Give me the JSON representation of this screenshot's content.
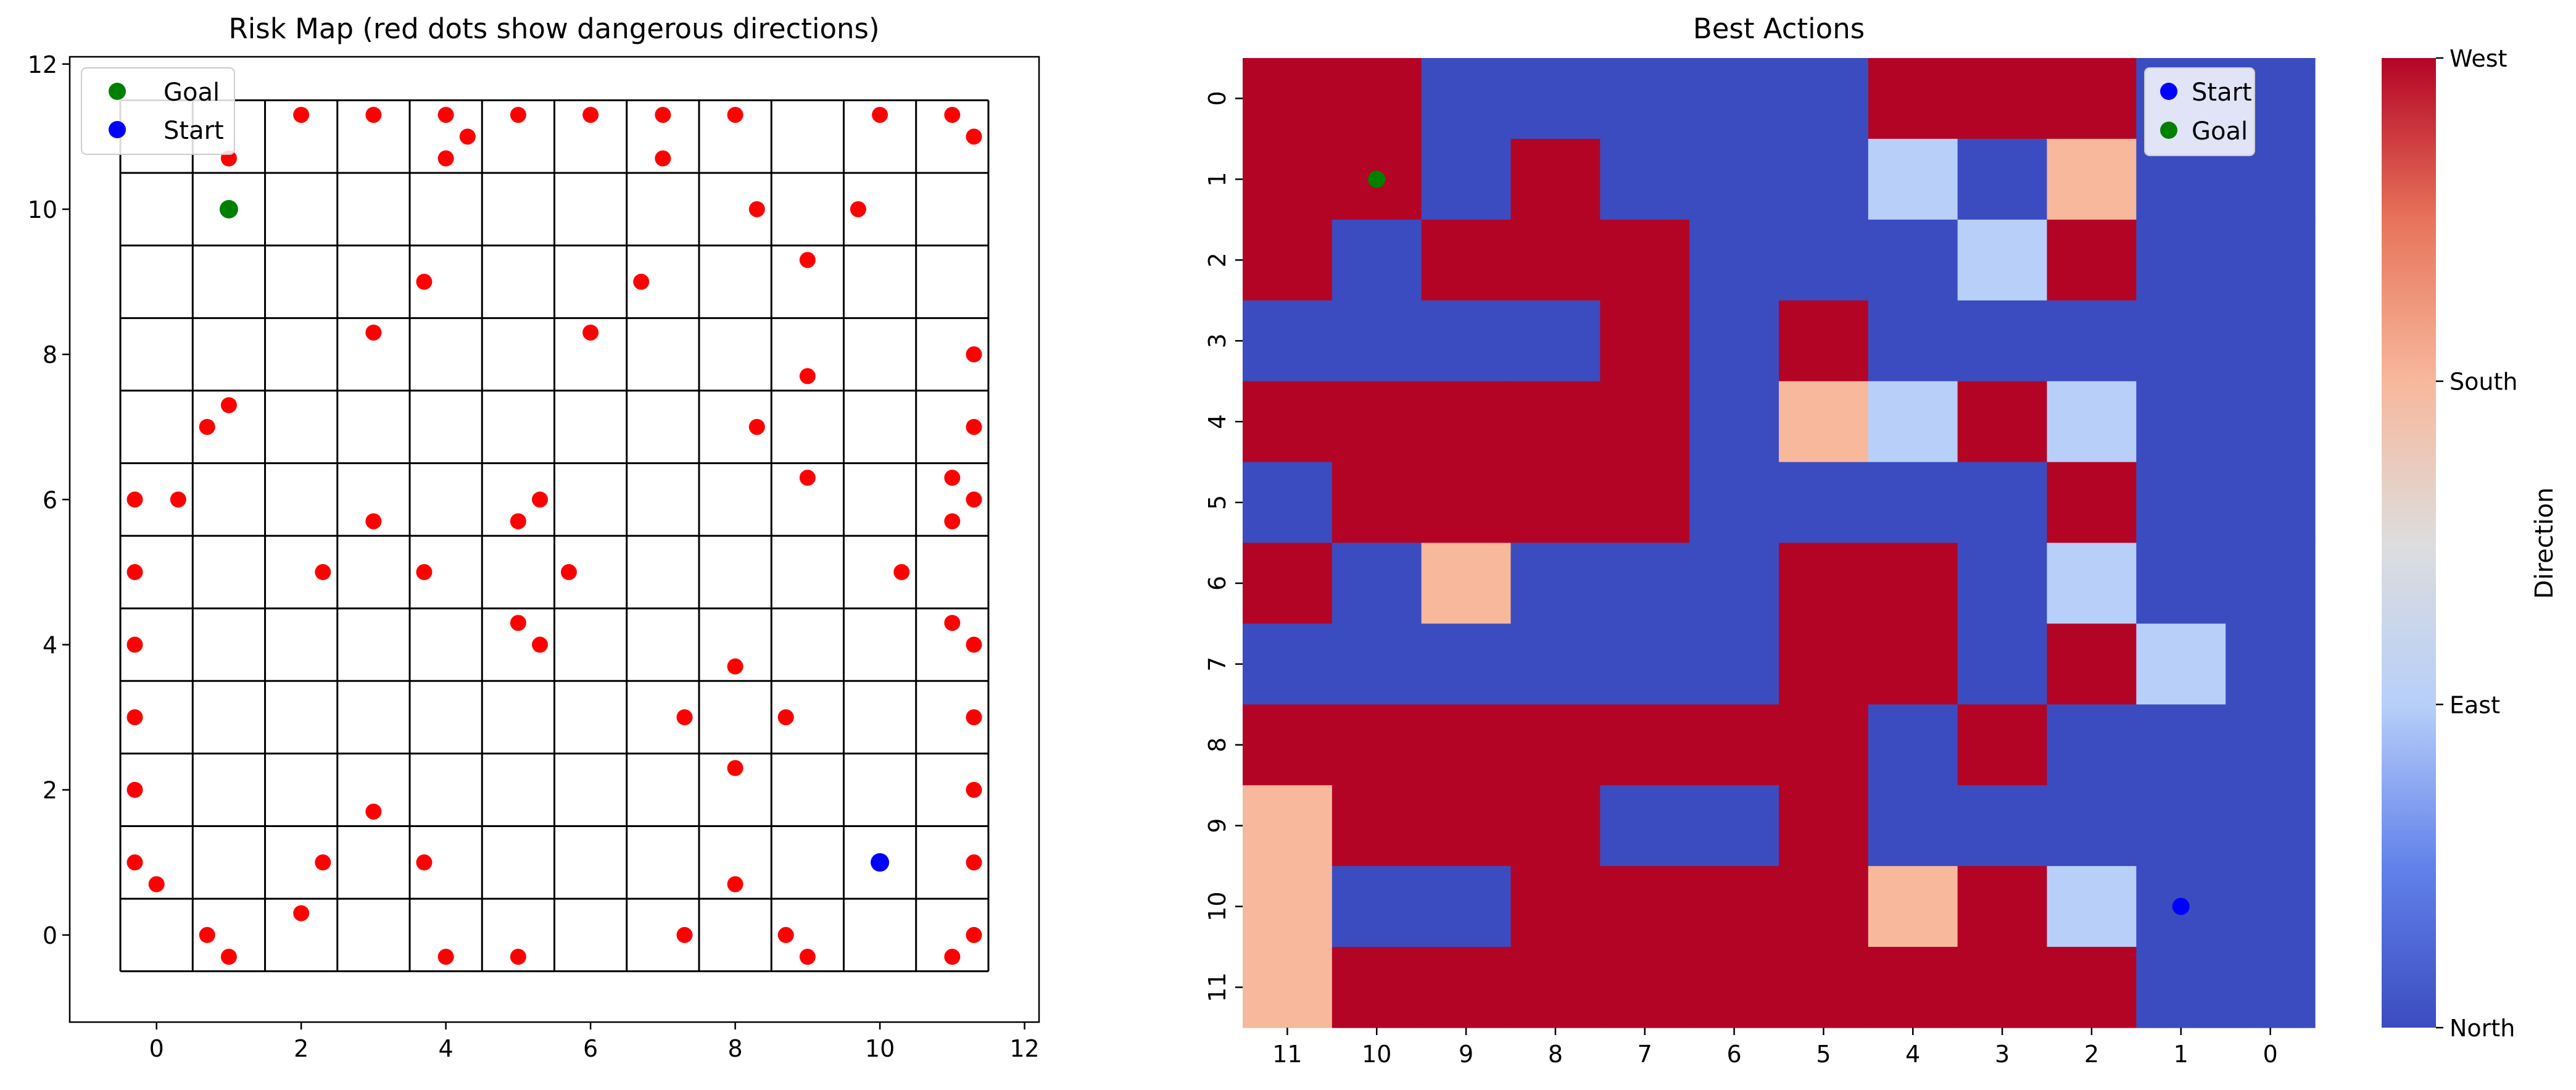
{
  "colors": {
    "danger": "#ff0000",
    "goal": "#008000",
    "start": "#0000ff",
    "north": "#3b4cc0",
    "east": "#b7cff9",
    "south": "#f7b89c",
    "west": "#b40426",
    "grid_line": "#000000"
  },
  "chart_data": [
    {
      "type": "scatter",
      "title": "Risk Map (red dots show dangerous directions)",
      "xlim": [
        -1.2,
        12.2
      ],
      "ylim": [
        -1.2,
        12.1
      ],
      "xticks": [
        "0",
        "2",
        "4",
        "6",
        "8",
        "10",
        "12"
      ],
      "yticks": [
        "0",
        "2",
        "4",
        "6",
        "8",
        "10",
        "12"
      ],
      "grid_size": 12,
      "grid": true,
      "legend_position": "top-left",
      "legend": [
        {
          "label": "Goal",
          "color": "#008000"
        },
        {
          "label": "Start",
          "color": "#0000ff"
        }
      ],
      "goal": [
        1,
        10
      ],
      "start": [
        10,
        1
      ],
      "danger_points": [
        [
          1,
          10.7
        ],
        [
          2,
          11.3
        ],
        [
          3,
          11.3
        ],
        [
          4,
          11.3
        ],
        [
          4.3,
          11
        ],
        [
          4,
          10.7
        ],
        [
          5,
          11.3
        ],
        [
          6,
          11.3
        ],
        [
          7,
          11.3
        ],
        [
          7,
          10.7
        ],
        [
          8,
          11.3
        ],
        [
          10,
          11.3
        ],
        [
          11,
          11.3
        ],
        [
          11.3,
          11
        ],
        [
          8.3,
          10
        ],
        [
          9.7,
          10
        ],
        [
          3.7,
          9
        ],
        [
          6.7,
          9
        ],
        [
          9,
          9.3
        ],
        [
          3,
          8.3
        ],
        [
          6,
          8.3
        ],
        [
          11.3,
          8
        ],
        [
          9,
          7.7
        ],
        [
          1,
          7.3
        ],
        [
          0.7,
          7
        ],
        [
          8.3,
          7
        ],
        [
          11.3,
          7
        ],
        [
          -0.3,
          6
        ],
        [
          0.3,
          6
        ],
        [
          3,
          5.7
        ],
        [
          5.3,
          6
        ],
        [
          5,
          5.7
        ],
        [
          9,
          6.3
        ],
        [
          11,
          6.3
        ],
        [
          11.3,
          6
        ],
        [
          11,
          5.7
        ],
        [
          -0.3,
          5
        ],
        [
          2.3,
          5
        ],
        [
          3.7,
          5
        ],
        [
          5.7,
          5
        ],
        [
          10.3,
          5
        ],
        [
          -0.3,
          4
        ],
        [
          5,
          4.3
        ],
        [
          5.3,
          4
        ],
        [
          8,
          3.7
        ],
        [
          11,
          4.3
        ],
        [
          11.3,
          4
        ],
        [
          -0.3,
          3
        ],
        [
          7.3,
          3
        ],
        [
          8.7,
          3
        ],
        [
          11.3,
          3
        ],
        [
          -0.3,
          2
        ],
        [
          8,
          2.3
        ],
        [
          11.3,
          2
        ],
        [
          3,
          1.7
        ],
        [
          -0.3,
          1
        ],
        [
          0,
          0.7
        ],
        [
          2.3,
          1
        ],
        [
          3.7,
          1
        ],
        [
          8,
          0.7
        ],
        [
          11.3,
          1
        ],
        [
          0.7,
          0
        ],
        [
          1,
          -0.3
        ],
        [
          2,
          0.3
        ],
        [
          4,
          -0.3
        ],
        [
          5,
          -0.3
        ],
        [
          7.3,
          0
        ],
        [
          8.7,
          0
        ],
        [
          9,
          -0.3
        ],
        [
          11,
          -0.3
        ],
        [
          11.3,
          0
        ]
      ]
    },
    {
      "type": "heatmap",
      "title": "Best Actions",
      "x_tick_labels": [
        "11",
        "10",
        "9",
        "8",
        "7",
        "6",
        "5",
        "4",
        "3",
        "2",
        "1",
        "0"
      ],
      "y_tick_labels": [
        "0",
        "1",
        "2",
        "3",
        "4",
        "5",
        "6",
        "7",
        "8",
        "9",
        "10",
        "11"
      ],
      "direction_codes": {
        "0": "North",
        "1": "East",
        "2": "South",
        "3": "West"
      },
      "values": [
        [
          3,
          3,
          0,
          0,
          0,
          0,
          0,
          3,
          3,
          3,
          0,
          0
        ],
        [
          3,
          3,
          0,
          3,
          0,
          0,
          0,
          1,
          0,
          2,
          0,
          0
        ],
        [
          3,
          0,
          3,
          3,
          3,
          0,
          0,
          0,
          1,
          3,
          0,
          0
        ],
        [
          0,
          0,
          0,
          0,
          3,
          0,
          3,
          0,
          0,
          0,
          0,
          0
        ],
        [
          3,
          3,
          3,
          3,
          3,
          0,
          2,
          1,
          3,
          1,
          0,
          0
        ],
        [
          0,
          3,
          3,
          3,
          3,
          0,
          0,
          0,
          0,
          3,
          0,
          0
        ],
        [
          3,
          0,
          2,
          0,
          0,
          0,
          3,
          3,
          0,
          1,
          0,
          0
        ],
        [
          0,
          0,
          0,
          0,
          0,
          0,
          3,
          3,
          0,
          3,
          1,
          0
        ],
        [
          3,
          3,
          3,
          3,
          3,
          3,
          3,
          0,
          3,
          0,
          0,
          0
        ],
        [
          2,
          3,
          3,
          3,
          0,
          0,
          3,
          0,
          0,
          0,
          0,
          0
        ],
        [
          2,
          0,
          0,
          3,
          3,
          3,
          3,
          2,
          3,
          1,
          0,
          0
        ],
        [
          2,
          3,
          3,
          3,
          3,
          3,
          3,
          3,
          3,
          3,
          0,
          0
        ]
      ],
      "legend_position": "top-right",
      "legend": [
        {
          "label": "Start",
          "color": "#0000ff"
        },
        {
          "label": "Goal",
          "color": "#008000"
        }
      ],
      "start_cell": {
        "row": 10,
        "col": 10
      },
      "goal_cell": {
        "row": 1,
        "col": 1
      },
      "colorbar": {
        "label": "Direction",
        "range": [
          0,
          3
        ],
        "ticks": [
          {
            "value": 0,
            "label": "North"
          },
          {
            "value": 1,
            "label": "East"
          },
          {
            "value": 2,
            "label": "South"
          },
          {
            "value": 3,
            "label": "West"
          }
        ]
      }
    }
  ]
}
